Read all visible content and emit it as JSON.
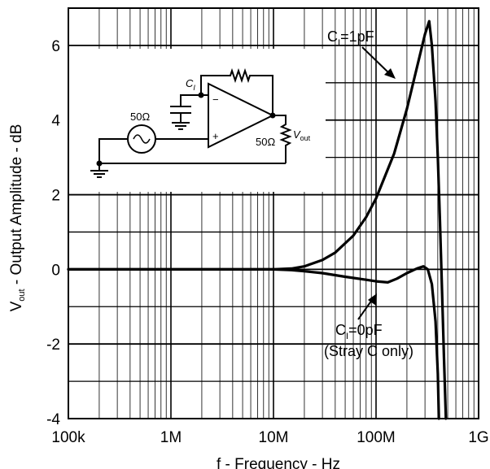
{
  "chart_data": {
    "type": "line",
    "xlabel": "f - Frequency - Hz",
    "ylabel_main": "V",
    "ylabel_sub": "out",
    "ylabel_rest": " - Output Amplitude - dB",
    "x_scale": "log",
    "xlim": [
      100000,
      1000000000
    ],
    "ylim": [
      -4,
      7
    ],
    "grid": true,
    "x_ticks": [
      {
        "value": 100000,
        "label": "100k"
      },
      {
        "value": 1000000,
        "label": "1M"
      },
      {
        "value": 10000000,
        "label": "10M"
      },
      {
        "value": 100000000,
        "label": "100M"
      },
      {
        "value": 1000000000,
        "label": "1G"
      }
    ],
    "y_ticks": [
      {
        "value": 6,
        "label": "6"
      },
      {
        "value": 4,
        "label": "4"
      },
      {
        "value": 2,
        "label": "2"
      },
      {
        "value": 0,
        "label": "0"
      },
      {
        "value": -2,
        "label": "-2"
      },
      {
        "value": -4,
        "label": "-4"
      }
    ],
    "series": [
      {
        "x": [
          100000,
          1000000,
          10000000,
          15000000,
          20000000,
          30000000,
          40000000,
          60000000,
          80000000,
          100000000,
          150000000,
          200000000,
          250000000,
          300000000,
          330000000,
          350000000,
          380000000,
          400000000,
          420000000,
          440000000,
          460000000,
          480000000
        ],
        "y": [
          0,
          0,
          0,
          0.02,
          0.08,
          0.25,
          0.45,
          0.9,
          1.4,
          1.9,
          3.1,
          4.3,
          5.4,
          6.3,
          6.65,
          6.0,
          4.5,
          3.0,
          1.3,
          -0.6,
          -2.4,
          -4.0
        ]
      },
      {
        "x": [
          100000,
          1000000,
          10000000,
          15000000,
          20000000,
          30000000,
          50000000,
          80000000,
          100000000,
          130000000,
          160000000,
          200000000,
          250000000,
          290000000,
          320000000,
          350000000,
          380000000,
          400000000,
          410000000
        ],
        "y": [
          0,
          0,
          0,
          -0.02,
          -0.05,
          -0.1,
          -0.2,
          -0.28,
          -0.32,
          -0.35,
          -0.25,
          -0.1,
          0.02,
          0.08,
          0.0,
          -0.4,
          -1.4,
          -2.8,
          -4.0
        ]
      }
    ],
    "annotations": {
      "c1_main": "C",
      "c1_sub": "I",
      "c1_rest": "=1pF",
      "c0_main": "C",
      "c0_sub": "I",
      "c0_rest": "=0pF",
      "c0_line2": "(Stray C only)"
    },
    "schematic": {
      "cap_main": "C",
      "cap_sub": "I",
      "source_label": "50Ω",
      "load_label": "50Ω",
      "vout_main": "V",
      "vout_sub": "out",
      "minus": "−",
      "plus": "+"
    }
  }
}
